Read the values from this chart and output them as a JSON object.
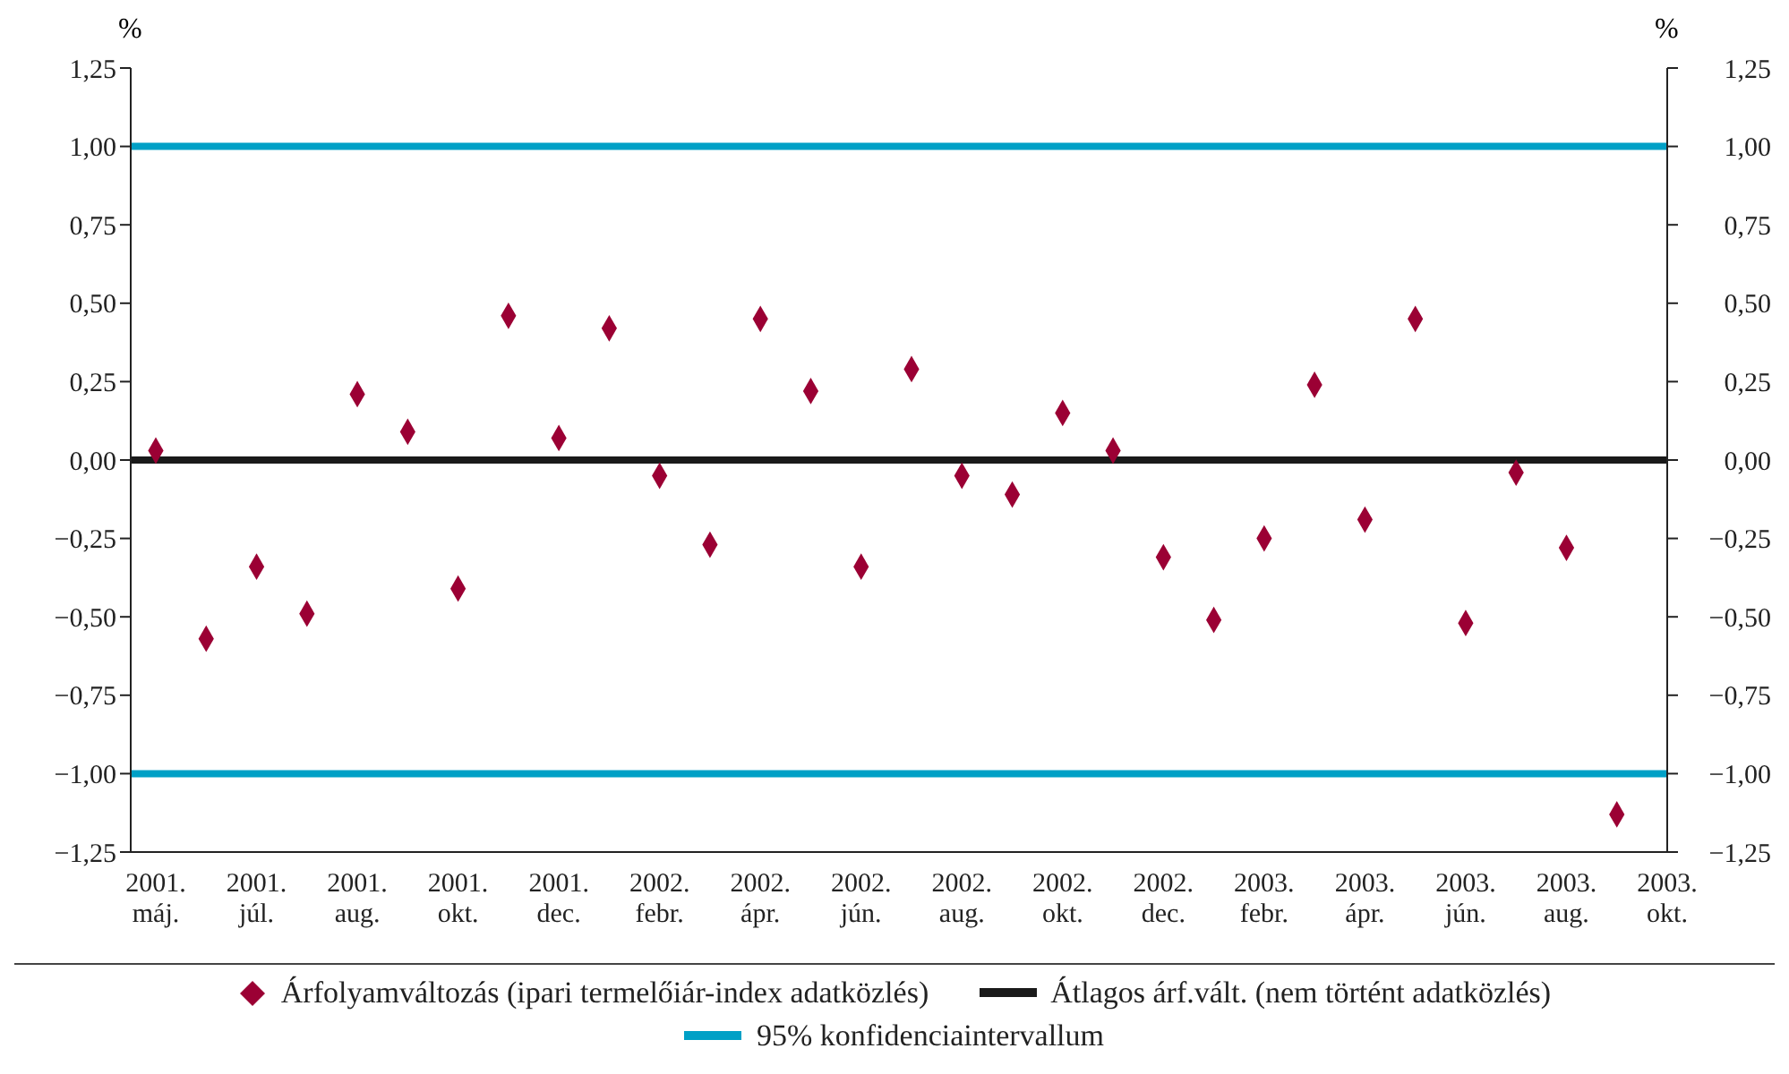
{
  "chart_data": {
    "type": "scatter",
    "ylabel": "%",
    "y2label": "%",
    "categories": [
      "2001.\nmáj.",
      null,
      "2001.\njúl.",
      null,
      "2001.\naug.",
      null,
      "2001.\nokt.",
      null,
      "2001.\ndec.",
      null,
      "2002.\nfebr.",
      null,
      "2002.\nápr.",
      null,
      "2002.\njún.",
      null,
      "2002.\naug.",
      null,
      "2002.\nokt.",
      null,
      "2002.\ndec.",
      null,
      "2003.\nfebr.",
      null,
      "2003.\nápr.",
      null,
      "2003.\njún.",
      null,
      "2003.\naug.",
      null,
      "2003.\nokt."
    ],
    "series": [
      {
        "name": "Árfolyamváltozás (ipari termelőiár-index adatközlés)",
        "color": "#9b0034",
        "values": [
          0.03,
          -0.57,
          -0.34,
          -0.49,
          0.21,
          0.09,
          -0.41,
          0.46,
          0.07,
          0.42,
          -0.05,
          -0.27,
          0.45,
          0.22,
          -0.34,
          0.29,
          -0.05,
          -0.11,
          0.15,
          0.03,
          -0.31,
          -0.51,
          -0.25,
          0.24,
          -0.19,
          0.45,
          -0.52,
          -0.04,
          -0.28,
          -1.13,
          null
        ]
      }
    ],
    "marker": "diamond",
    "grid": false,
    "legend": "bottom",
    "ref_lines": [
      {
        "axis": "y",
        "value": 0,
        "label": "Átlagos árf.vált. (nem történt adatközlés)",
        "color": "#1a1a1a"
      },
      {
        "axis": "y",
        "value": 1,
        "label": "95% konfidenciaintervallum",
        "color": "#00a0c6"
      },
      {
        "axis": "y",
        "value": -1,
        "label": null,
        "color": "#00a0c6"
      }
    ],
    "ylim": [
      -1.25,
      1.25
    ],
    "yticks": [
      {
        "value": -1.25,
        "label": "−1,25"
      },
      {
        "value": -1,
        "label": "−1,00"
      },
      {
        "value": -0.75,
        "label": "−0,75"
      },
      {
        "value": -0.5,
        "label": "−0,50"
      },
      {
        "value": -0.25,
        "label": "−0,25"
      },
      {
        "value": 0,
        "label": "0,00"
      },
      {
        "value": 0.25,
        "label": "0,25"
      },
      {
        "value": 0.5,
        "label": "0,50"
      },
      {
        "value": 0.75,
        "label": "0,75"
      },
      {
        "value": 1,
        "label": "1,00"
      },
      {
        "value": 1.25,
        "label": "1,25"
      }
    ],
    "y2lim": [
      -1.25,
      1.25
    ],
    "y2ticks": [
      {
        "value": -1.25,
        "label": "−1,25"
      },
      {
        "value": -1,
        "label": "−1,00"
      },
      {
        "value": -0.75,
        "label": "−0,75"
      },
      {
        "value": -0.5,
        "label": "−0,50"
      },
      {
        "value": -0.25,
        "label": "−0,25"
      },
      {
        "value": 0,
        "label": "0,00"
      },
      {
        "value": 0.25,
        "label": "0,25"
      },
      {
        "value": 0.5,
        "label": "0,50"
      },
      {
        "value": 0.75,
        "label": "0,75"
      },
      {
        "value": 1,
        "label": "1,00"
      },
      {
        "value": 1.25,
        "label": "1,25"
      }
    ]
  }
}
